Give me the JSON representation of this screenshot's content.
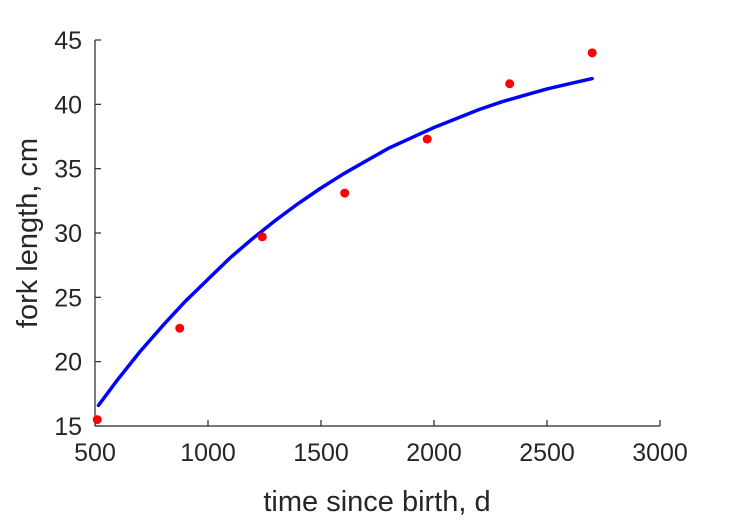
{
  "chart_data": {
    "type": "scatter",
    "title": "",
    "xlabel": "time since birth, d",
    "ylabel": "fork length, cm",
    "xlim": [
      500,
      3000
    ],
    "ylim": [
      15,
      45
    ],
    "xticks": [
      "500",
      "1000",
      "1500",
      "2000",
      "2500",
      "3000"
    ],
    "yticks": [
      "15",
      "20",
      "25",
      "30",
      "35",
      "40",
      "45"
    ],
    "grid": false,
    "legend": "none",
    "series": [
      {
        "kind": "points",
        "color": "#ff0000",
        "x": [
          510,
          875,
          1240,
          1605,
          1970,
          2335,
          2700
        ],
        "y": [
          15.5,
          22.6,
          29.7,
          33.1,
          37.3,
          41.6,
          44.0
        ]
      },
      {
        "kind": "line",
        "color": "#0000ff",
        "x": [
          515,
          600,
          700,
          800,
          900,
          1000,
          1100,
          1200,
          1300,
          1400,
          1500,
          1600,
          1700,
          1800,
          1900,
          2000,
          2100,
          2200,
          2300,
          2400,
          2500,
          2600,
          2700
        ],
        "y": [
          16.6,
          18.6,
          20.8,
          22.8,
          24.7,
          26.4,
          28.1,
          29.6,
          31.0,
          32.3,
          33.5,
          34.6,
          35.6,
          36.6,
          37.4,
          38.2,
          38.9,
          39.6,
          40.2,
          40.7,
          41.2,
          41.6,
          42.0
        ]
      }
    ]
  }
}
